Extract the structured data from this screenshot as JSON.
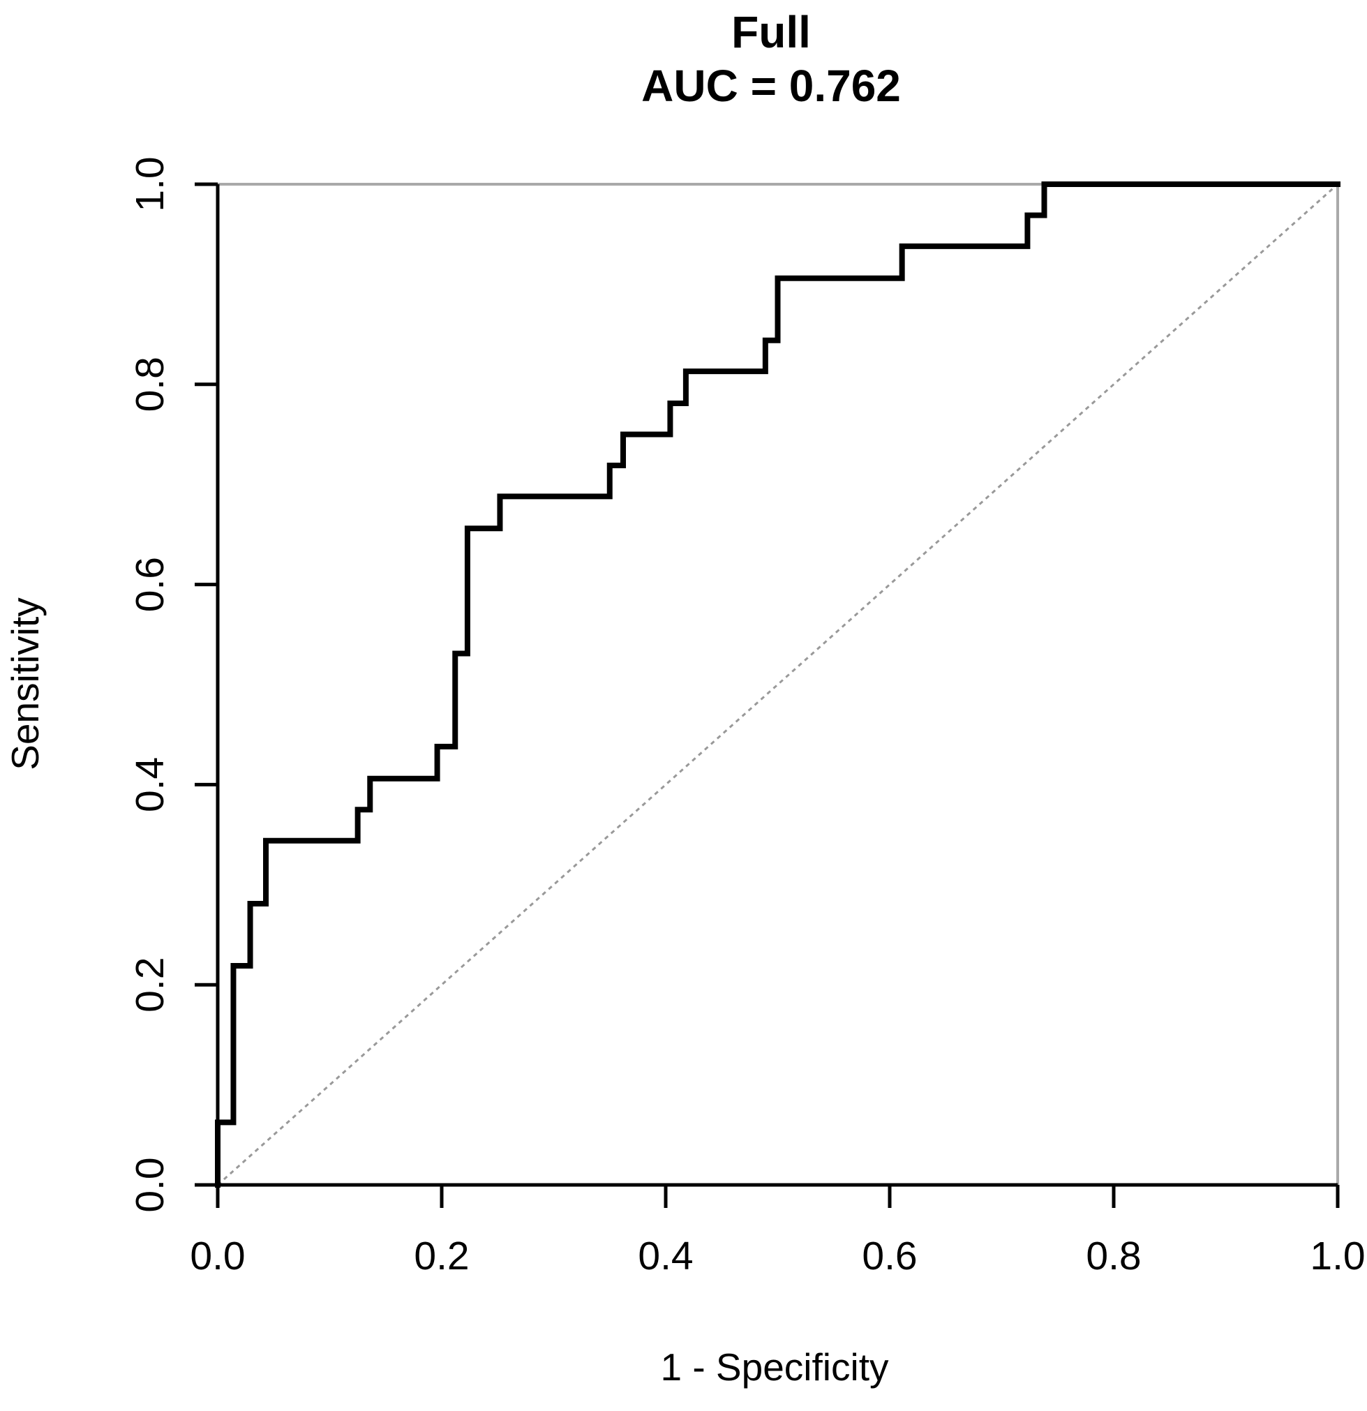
{
  "page": {
    "background": "#ffffff"
  },
  "title": {
    "line1": "Full",
    "line2": "AUC = 0.762"
  },
  "axes": {
    "x": {
      "label": "1 - Specificity",
      "tick_labels": [
        "0.0",
        "0.2",
        "0.4",
        "0.6",
        "0.8",
        "1.0"
      ]
    },
    "y": {
      "label": "Sensitivity",
      "tick_labels": [
        "0.0",
        "0.2",
        "0.4",
        "0.6",
        "0.8",
        "1.0"
      ]
    }
  },
  "chart_data": {
    "type": "line",
    "subtype": "roc-step-curve",
    "title": "Full",
    "subtitle": "AUC = 0.762",
    "auc": 0.762,
    "xlabel": "1 - Specificity",
    "ylabel": "Sensitivity",
    "xlim": [
      0.0,
      1.0
    ],
    "ylim": [
      0.0,
      1.0
    ],
    "xticks": [
      0.0,
      0.2,
      0.4,
      0.6,
      0.8,
      1.0
    ],
    "xtick_labels": [
      "0.0",
      "0.2",
      "0.4",
      "0.6",
      "0.8",
      "1.0"
    ],
    "yticks": [
      0.0,
      0.2,
      0.4,
      0.6,
      0.8,
      1.0
    ],
    "ytick_labels": [
      "0.0",
      "0.2",
      "0.4",
      "0.6",
      "0.8",
      "1.0"
    ],
    "grid": false,
    "legend": "none",
    "series": [
      {
        "name": "ROC curve (Full model)",
        "color": "#000000",
        "stroke_width": 8,
        "points": [
          [
            0.0,
            0.0
          ],
          [
            0.0,
            0.0625
          ],
          [
            0.014,
            0.0625
          ],
          [
            0.014,
            0.219
          ],
          [
            0.029,
            0.219
          ],
          [
            0.029,
            0.281
          ],
          [
            0.043,
            0.281
          ],
          [
            0.043,
            0.344
          ],
          [
            0.125,
            0.344
          ],
          [
            0.125,
            0.375
          ],
          [
            0.136,
            0.375
          ],
          [
            0.136,
            0.406
          ],
          [
            0.196,
            0.406
          ],
          [
            0.196,
            0.438
          ],
          [
            0.212,
            0.438
          ],
          [
            0.212,
            0.531
          ],
          [
            0.223,
            0.531
          ],
          [
            0.223,
            0.656
          ],
          [
            0.252,
            0.656
          ],
          [
            0.252,
            0.688
          ],
          [
            0.35,
            0.688
          ],
          [
            0.35,
            0.719
          ],
          [
            0.362,
            0.719
          ],
          [
            0.362,
            0.75
          ],
          [
            0.404,
            0.75
          ],
          [
            0.404,
            0.781
          ],
          [
            0.418,
            0.781
          ],
          [
            0.418,
            0.813
          ],
          [
            0.489,
            0.813
          ],
          [
            0.489,
            0.844
          ],
          [
            0.5,
            0.844
          ],
          [
            0.5,
            0.906
          ],
          [
            0.611,
            0.906
          ],
          [
            0.611,
            0.938
          ],
          [
            0.723,
            0.938
          ],
          [
            0.723,
            0.969
          ],
          [
            0.738,
            0.969
          ],
          [
            0.738,
            1.0
          ],
          [
            1.0,
            1.0
          ]
        ]
      }
    ],
    "reference_line": {
      "x": [
        0.0,
        1.0
      ],
      "y": [
        0.0,
        1.0
      ],
      "color": "#999999",
      "style": "dotted",
      "stroke_width": 3
    },
    "frame": {
      "sides": [
        "top",
        "right"
      ],
      "color": "#a9a9a9",
      "stroke_width": 4
    },
    "axis_color": "#000000",
    "axis_stroke_width": 5,
    "tick_length": 33
  }
}
